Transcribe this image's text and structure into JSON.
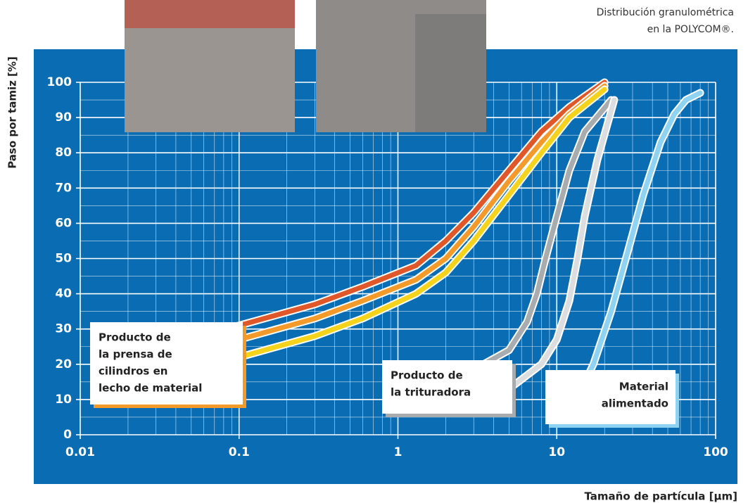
{
  "chart_data": {
    "type": "line",
    "title": [
      "Distribución granulométrica",
      "en la POLYCOM®."
    ],
    "y_label": "Paso por tamiz [%]",
    "x_label": "Tamaño de partícula [µm]",
    "xscale": "log",
    "xlim": [
      0.01,
      100
    ],
    "xticks": [
      0.01,
      0.1,
      1,
      10,
      100
    ],
    "ylim": [
      0,
      100
    ],
    "yticks": [
      0,
      10,
      20,
      30,
      40,
      50,
      60,
      70,
      80,
      90,
      100
    ],
    "grid": true,
    "minor_grid": true,
    "series": [
      {
        "color": "#e0582a",
        "x": [
          0.045,
          0.1,
          0.3,
          0.6,
          1.3,
          2,
          3,
          5,
          8,
          12,
          20
        ],
        "values": [
          27.5,
          31,
          37,
          42,
          48,
          55,
          63,
          75,
          86,
          93,
          100
        ]
      },
      {
        "color": "#f39a2a",
        "x": [
          0.045,
          0.1,
          0.3,
          0.6,
          1.3,
          2,
          3,
          5,
          8,
          12,
          20
        ],
        "values": [
          23,
          27,
          33,
          38,
          44,
          50,
          59,
          72,
          83,
          91,
          99
        ]
      },
      {
        "color": "#f5d21b",
        "x": [
          0.045,
          0.1,
          0.3,
          0.6,
          1.3,
          2,
          3,
          5,
          8,
          12,
          20
        ],
        "values": [
          18,
          22,
          28,
          33,
          40,
          46,
          55,
          68,
          80,
          90,
          98
        ]
      },
      {
        "color": "#a9acae",
        "x": [
          3.3,
          5,
          6.5,
          7.5,
          8.5,
          10,
          12,
          15,
          22
        ],
        "values": [
          19.5,
          24,
          32,
          40,
          50,
          62,
          75,
          86,
          95
        ]
      },
      {
        "color": "#dcdddf",
        "x": [
          3.3,
          5,
          8,
          10,
          12,
          13.5,
          15,
          18,
          23
        ],
        "values": [
          9,
          13,
          20,
          27,
          38,
          50,
          62,
          78,
          95
        ]
      },
      {
        "color": "#8fd3f2",
        "x": [
          13,
          17,
          22,
          28,
          35,
          45,
          55,
          65,
          80
        ],
        "values": [
          9,
          20,
          35,
          52,
          68,
          83,
          91,
          95,
          97
        ]
      }
    ],
    "annotations": [
      {
        "lines": [
          "Producto de",
          "la prensa de",
          "cilindros en",
          "lecho de material"
        ],
        "color": "#f39a2a"
      },
      {
        "lines": [
          "Producto de",
          "la trituradora"
        ],
        "color": "#a9acae"
      },
      {
        "lines": [
          "Material",
          "alimentado"
        ],
        "color": "#8fd3f2"
      }
    ]
  }
}
